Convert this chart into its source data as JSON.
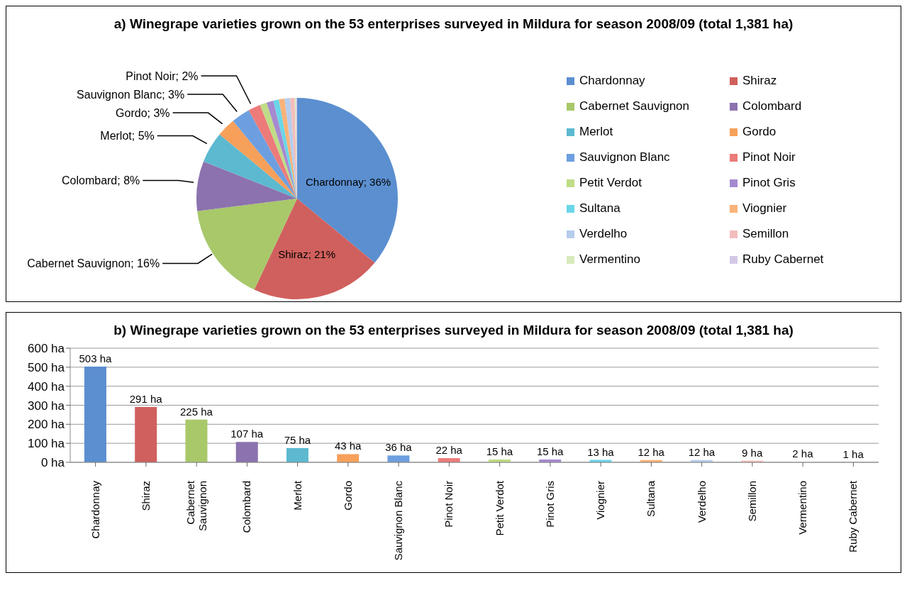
{
  "chart_data": [
    {
      "type": "pie",
      "title": "a) Winegrape varieties grown on the 53 enterprises surveyed in Mildura for season 2008/09 (total 1,381 ha)",
      "categories": [
        "Chardonnay",
        "Shiraz",
        "Cabernet Sauvignon",
        "Colombard",
        "Merlot",
        "Gordo",
        "Sauvignon Blanc",
        "Pinot Noir",
        "Petit Verdot",
        "Pinot Gris",
        "Sultana",
        "Viognier",
        "Verdelho",
        "Semillon",
        "Vermentino",
        "Ruby Cabernet"
      ],
      "values": [
        36,
        21,
        16,
        8,
        5,
        3,
        3,
        2,
        1.1,
        1.1,
        0.9,
        0.9,
        0.9,
        0.7,
        0.2,
        0.2
      ],
      "value_labels": [
        "Chardonnay; 36%",
        "Shiraz; 21%",
        "Cabernet Sauvignon; 16%",
        "Colombard; 8%",
        "Merlot; 5%",
        "Gordo; 3%",
        "Sauvignon Blanc; 3%",
        "Pinot Noir; 2%",
        null,
        null,
        null,
        null,
        null,
        null,
        null,
        null
      ],
      "colors": [
        "#5b8fd0",
        "#d0605d",
        "#a8c86a",
        "#8c72ae",
        "#5cb9d0",
        "#f7a05a",
        "#6d9fe0",
        "#ec7b7a",
        "#bfdc86",
        "#a68ad0",
        "#6ad6e8",
        "#fab277",
        "#b6cdec",
        "#f4bdbc",
        "#d8eabb",
        "#d2c8e6"
      ],
      "legend": "right"
    },
    {
      "type": "bar",
      "title": "b) Winegrape varieties grown on the 53 enterprises surveyed in Mildura for season 2008/09 (total 1,381 ha)",
      "categories": [
        "Chardonnay",
        "Shiraz",
        "Cabernet Sauvignon",
        "Colombard",
        "Merlot",
        "Gordo",
        "Sauvignon Blanc",
        "Pinot Noir",
        "Petit Verdot",
        "Pinot Gris",
        "Viognier",
        "Sultana",
        "Verdelho",
        "Semillon",
        "Vermentino",
        "Ruby Cabernet"
      ],
      "values": [
        503,
        291,
        225,
        107,
        75,
        43,
        36,
        22,
        15,
        15,
        13,
        12,
        12,
        9,
        2,
        1
      ],
      "value_labels": [
        "503 ha",
        "291 ha",
        "225 ha",
        "107 ha",
        "75 ha",
        "43 ha",
        "36 ha",
        "22 ha",
        "15 ha",
        "15 ha",
        "13 ha",
        "12 ha",
        "12 ha",
        "9 ha",
        "2 ha",
        "1 ha"
      ],
      "colors": [
        "#5b8fd0",
        "#d0605d",
        "#a8c86a",
        "#8c72ae",
        "#5cb9d0",
        "#f7a05a",
        "#6d9fe0",
        "#ec7b7a",
        "#bfdc86",
        "#a68ad0",
        "#6ad6e8",
        "#fab277",
        "#b6cdec",
        "#f4bdbc",
        "#d8eabb",
        "#d2c8e6"
      ],
      "ylim": [
        0,
        600
      ],
      "yticks": [
        {
          "value": 0,
          "label": "0 ha"
        },
        {
          "value": 100,
          "label": "100 ha"
        },
        {
          "value": 200,
          "label": "200 ha"
        },
        {
          "value": 300,
          "label": "300 ha"
        },
        {
          "value": 400,
          "label": "400 ha"
        },
        {
          "value": 500,
          "label": "500 ha"
        },
        {
          "value": 600,
          "label": "600 ha"
        }
      ],
      "grid": "y"
    }
  ]
}
